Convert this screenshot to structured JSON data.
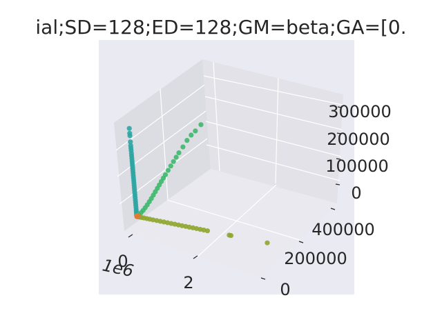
{
  "chart_data": {
    "type": "scatter",
    "projection": "3d",
    "title": "ial;SD=128;ED=128;GM=beta;GA=[0.",
    "x_axis": {
      "label": "",
      "ticks": [
        "0",
        "2"
      ],
      "offset_label": "1e6"
    },
    "y_axis": {
      "label": "",
      "ticks": [
        "0",
        "200000",
        "400000"
      ]
    },
    "z_axis": {
      "label": "",
      "ticks": [
        "0",
        "100000",
        "200000",
        "300000"
      ]
    },
    "grid": true,
    "legend": "none",
    "colors": {
      "pane_back": "#e2e2e8",
      "pane_side": "#dcdce3",
      "pane_floor": "#e9e9ef",
      "outer_bg": "#eaeaf2",
      "grid": "#ffffff",
      "z_branch": "#2ba5a2",
      "diagonal_branch": "#3cb86c",
      "x_branch": "#8ea62e",
      "origin_cluster": "#e07a36"
    },
    "series": [
      {
        "color": "#2ba5a2",
        "points": [
          [
            0,
            0,
            360000
          ],
          [
            0,
            0,
            340000
          ],
          [
            0,
            0,
            330000
          ],
          [
            0,
            0,
            305000
          ],
          [
            0,
            0,
            290000
          ],
          [
            0,
            0,
            280000
          ],
          [
            0,
            0,
            270000
          ],
          [
            0,
            0,
            258000
          ],
          [
            0,
            0,
            248000
          ],
          [
            0,
            0,
            238000
          ],
          [
            0,
            0,
            228000
          ],
          [
            0,
            0,
            218000
          ],
          [
            0,
            0,
            208000
          ],
          [
            0,
            0,
            198000
          ],
          [
            0,
            0,
            188000
          ],
          [
            0,
            0,
            178000
          ],
          [
            0,
            0,
            168000
          ],
          [
            0,
            0,
            158000
          ],
          [
            0,
            0,
            148000
          ],
          [
            0,
            0,
            138000
          ],
          [
            0,
            0,
            128000
          ],
          [
            0,
            0,
            118000
          ],
          [
            0,
            0,
            108000
          ],
          [
            0,
            0,
            98000
          ],
          [
            0,
            0,
            88000
          ],
          [
            0,
            0,
            78000
          ],
          [
            0,
            0,
            68000
          ],
          [
            0,
            0,
            58000
          ],
          [
            0,
            0,
            48000
          ],
          [
            0,
            0,
            38000
          ],
          [
            0,
            0,
            28000
          ],
          [
            0,
            0,
            20000
          ],
          [
            0,
            0,
            12000
          ],
          [
            0,
            0,
            6000
          ]
        ]
      },
      {
        "color": "#3cb86c",
        "points": [
          [
            0,
            470000,
            190000
          ],
          [
            0,
            430000,
            180000
          ],
          [
            0,
            400000,
            175000
          ],
          [
            0,
            370000,
            165000
          ],
          [
            0,
            340000,
            150000
          ],
          [
            0,
            310000,
            138000
          ],
          [
            0,
            290000,
            128000
          ],
          [
            0,
            270000,
            118000
          ],
          [
            0,
            250000,
            108000
          ],
          [
            0,
            230000,
            98000
          ],
          [
            0,
            210000,
            88000
          ],
          [
            0,
            195000,
            80000
          ],
          [
            0,
            180000,
            72000
          ],
          [
            0,
            165000,
            64000
          ],
          [
            0,
            150000,
            56000
          ],
          [
            0,
            135000,
            48000
          ],
          [
            0,
            120000,
            40000
          ],
          [
            0,
            105000,
            32000
          ],
          [
            0,
            90000,
            25000
          ],
          [
            0,
            75000,
            18000
          ],
          [
            0,
            60000,
            12000
          ],
          [
            0,
            45000,
            7000
          ],
          [
            0,
            30000,
            4000
          ],
          [
            0,
            15000,
            1500
          ]
        ]
      },
      {
        "color": "#8ea62e",
        "points": [
          [
            3600000,
            0,
            0
          ],
          [
            2600000,
            0,
            0
          ],
          [
            2550000,
            0,
            0
          ],
          [
            1950000,
            0,
            0
          ],
          [
            1850000,
            0,
            0
          ],
          [
            1750000,
            0,
            0
          ],
          [
            1650000,
            0,
            0
          ],
          [
            1550000,
            0,
            0
          ],
          [
            1450000,
            0,
            0
          ],
          [
            1350000,
            0,
            0
          ],
          [
            1250000,
            0,
            0
          ],
          [
            1150000,
            0,
            0
          ],
          [
            1050000,
            0,
            0
          ],
          [
            950000,
            0,
            0
          ],
          [
            850000,
            0,
            0
          ],
          [
            750000,
            0,
            0
          ],
          [
            650000,
            0,
            0
          ],
          [
            550000,
            0,
            0
          ],
          [
            450000,
            0,
            0
          ],
          [
            360000,
            0,
            0
          ],
          [
            280000,
            0,
            0
          ],
          [
            200000,
            0,
            0
          ],
          [
            130000,
            0,
            0
          ],
          [
            70000,
            0,
            0
          ],
          [
            30000,
            0,
            0
          ]
        ]
      },
      {
        "color": "#e07a36",
        "points": [
          [
            0,
            0,
            0
          ],
          [
            8000,
            0,
            0
          ],
          [
            0,
            8000,
            0
          ],
          [
            0,
            0,
            4000
          ],
          [
            12000,
            6000,
            2000
          ]
        ]
      }
    ]
  }
}
